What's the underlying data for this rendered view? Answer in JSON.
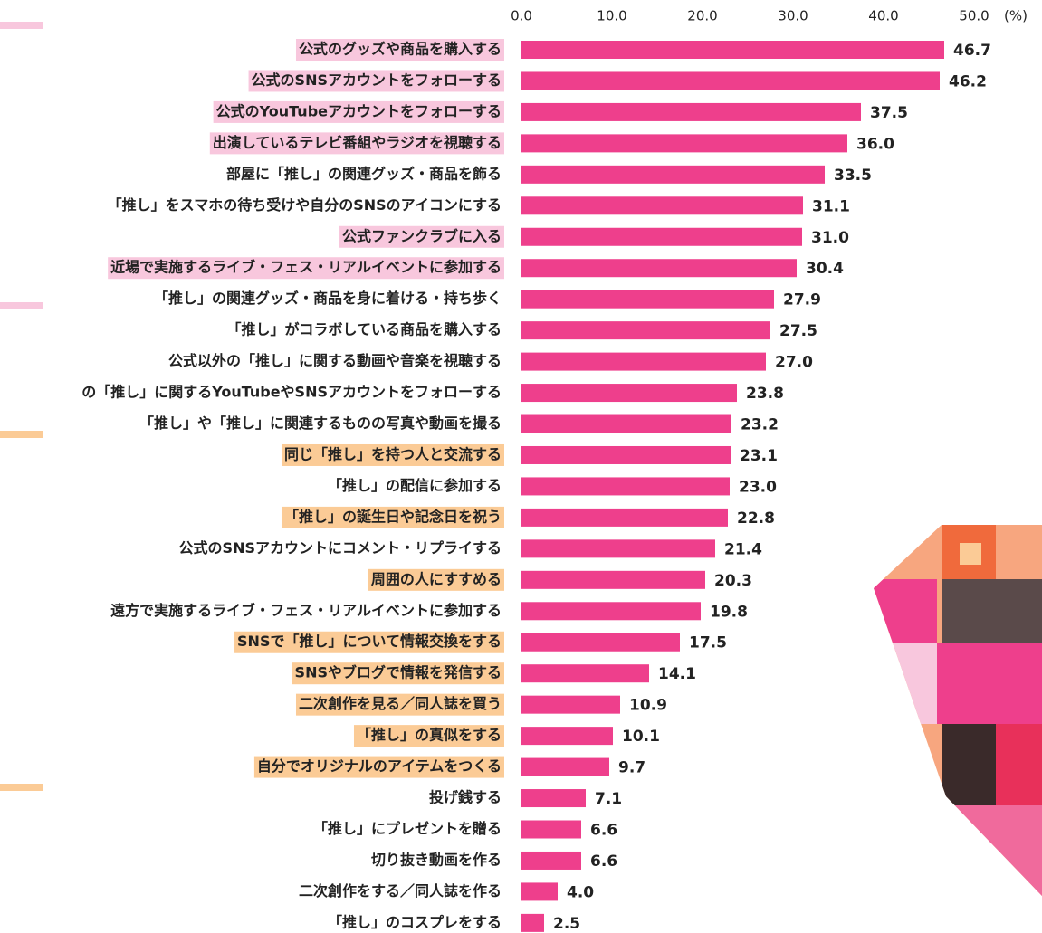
{
  "chart_data": {
    "type": "hbar",
    "categories": [
      "公式のグッズや商品を購入する",
      "公式のSNSアカウントをフォローする",
      "公式のYouTubeアカウントをフォローする",
      "出演しているテレビ番組やラジオを視聴する",
      "部屋に「推し」の関連グッズ・商品を飾る",
      "「推し」をスマホの待ち受けや自分のSNSのアイコンにする",
      "公式ファンクラブに入る",
      "近場で実施するライブ・フェス・リアルイベントに参加する",
      "「推し」の関連グッズ・商品を身に着ける・持ち歩く",
      "「推し」がコラボしている商品を購入する",
      "公式以外の「推し」に関する動画や音楽を視聴する",
      "の「推し」に関するYouTubeやSNSアカウントをフォローする",
      "「推し」や「推し」に関連するものの写真や動画を撮る",
      "同じ「推し」を持つ人と交流する",
      "「推し」の配信に参加する",
      "「推し」の誕生日や記念日を祝う",
      "公式のSNSアカウントにコメント・リプライする",
      "周囲の人にすすめる",
      "遠方で実施するライブ・フェス・リアルイベントに参加する",
      "SNSで「推し」について情報交換をする",
      "SNSやブログで情報を発信する",
      "二次創作を見る／同人誌を買う",
      "「推し」の真似をする",
      "自分でオリジナルのアイテムをつくる",
      "投げ銭する",
      "「推し」にプレゼントを贈る",
      "切り抜き動画を作る",
      "二次創作をする／同人誌を作る",
      "「推し」のコスプレをする"
    ],
    "values": [
      46.7,
      46.2,
      37.5,
      36.0,
      33.5,
      31.1,
      31.0,
      30.4,
      27.9,
      27.5,
      27.0,
      23.8,
      23.2,
      23.1,
      23.0,
      22.8,
      21.4,
      20.3,
      19.8,
      17.5,
      14.1,
      10.9,
      10.1,
      9.7,
      7.1,
      6.6,
      6.6,
      4.0,
      2.5
    ],
    "value_labels": [
      "46.7",
      "46.2",
      "37.5",
      "36.0",
      "33.5",
      "31.1",
      "31.0",
      "30.4",
      "27.9",
      "27.5",
      "27.0",
      "23.8",
      "23.2",
      "23.1",
      "23.0",
      "22.8",
      "21.4",
      "20.3",
      "19.8",
      "17.5",
      "14.1",
      "10.9",
      "10.1",
      "9.7",
      "7.1",
      "6.6",
      "6.6",
      "4.0",
      "2.5"
    ],
    "color": "#ee3f8c",
    "label_highlights": [
      "#f8c7dd",
      "#f8c7dd",
      "#f8c7dd",
      "#f8c7dd",
      null,
      null,
      "#f8c7dd",
      "#f8c7dd",
      null,
      null,
      null,
      null,
      null,
      "#fbcb96",
      null,
      "#fbcb96",
      null,
      "#fbcb96",
      null,
      "#fbcb96",
      "#fbcb96",
      "#fbcb96",
      "#fbcb96",
      "#fbcb96",
      null,
      null,
      null,
      null,
      null
    ],
    "xlim": [
      0,
      50
    ],
    "xticks": [
      {
        "value": 0,
        "label": "0.0"
      },
      {
        "value": 10,
        "label": "10.0"
      },
      {
        "value": 20,
        "label": "20.0"
      },
      {
        "value": 30,
        "label": "30.0"
      },
      {
        "value": 40,
        "label": "40.0"
      },
      {
        "value": 50,
        "label": "50.0"
      }
    ],
    "x_unit": "(%)"
  }
}
